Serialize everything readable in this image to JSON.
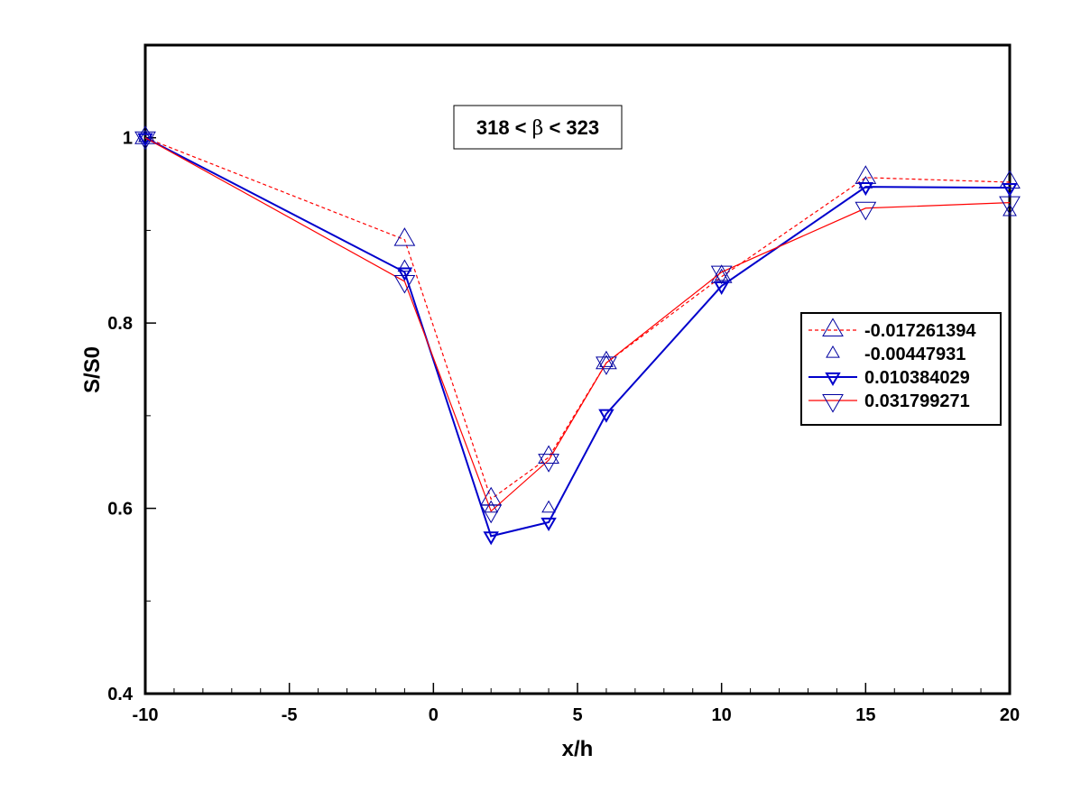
{
  "chart_data": {
    "type": "line",
    "title": "",
    "annotation": {
      "prefix": "318 < ",
      "symbol": "β",
      "suffix": " < 323"
    },
    "xlabel": "x/h",
    "ylabel": "S/S0",
    "xlim": [
      -10,
      20
    ],
    "ylim": [
      0.4,
      1.1
    ],
    "xticks": [
      -10,
      -5,
      0,
      5,
      10,
      15,
      20
    ],
    "yticks": [
      0.4,
      0.6,
      0.8,
      1
    ],
    "xtick_labels": [
      "-10",
      "-5",
      "0",
      "5",
      "10",
      "15",
      "20"
    ],
    "ytick_labels": [
      "0.4",
      "0.6",
      "0.8",
      "1"
    ],
    "grid": false,
    "legend_position": "right",
    "x": [
      -10,
      -1,
      2,
      4,
      6,
      10,
      15,
      20
    ],
    "series": [
      {
        "name": "-0.017261394",
        "values": [
          1.0,
          0.89,
          0.61,
          0.655,
          0.757,
          0.85,
          0.957,
          0.952
        ],
        "color": "#ff0000",
        "line": "dashed",
        "marker": "triangle-up",
        "marker_color": "#0000a0",
        "marker_size": "large"
      },
      {
        "name": "-0.00447931",
        "values": [
          1.0,
          0.86,
          0.6,
          0.6,
          0.757,
          0.85,
          0.95,
          0.92
        ],
        "color": null,
        "line": "none",
        "marker": "triangle-up",
        "marker_color": "#0000a0",
        "marker_size": "small"
      },
      {
        "name": "0.010384029",
        "values": [
          1.0,
          0.855,
          0.57,
          0.585,
          0.702,
          0.84,
          0.947,
          0.946
        ],
        "color": "#0000cc",
        "line": "solid",
        "marker": "triangle-down",
        "marker_color": "#0000cc",
        "marker_size": "small"
      },
      {
        "name": "0.031799271",
        "values": [
          1.0,
          0.845,
          0.597,
          0.652,
          0.757,
          0.855,
          0.924,
          0.93
        ],
        "color": "#ff0000",
        "line": "solid",
        "marker": "triangle-down",
        "marker_color": "#0000a0",
        "marker_size": "large"
      }
    ]
  }
}
